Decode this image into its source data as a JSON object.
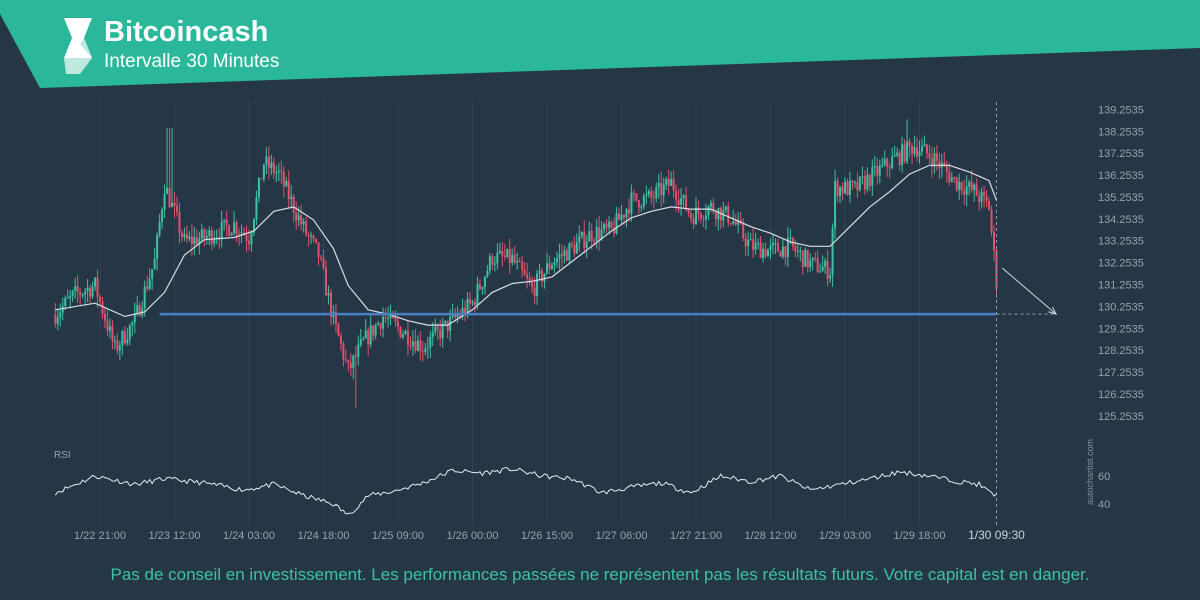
{
  "header": {
    "title": "Bitcoincash",
    "subtitle": "Intervalle 30 Minutes",
    "brand_color": "#2bb89a",
    "logo_icon": "autochartist-logo-icon"
  },
  "watermark": "autochartist.com",
  "disclaimer": "Pas de conseil en investissement. Les performances passées ne représentent pas les résultats futurs. Votre capital est en danger.",
  "colors": {
    "background": "#253746",
    "up_candle": "#3cc1a3",
    "down_candle": "#e4506a",
    "moving_average": "#d8dde2",
    "support_line": "#4a7fc4",
    "grid": "#2f4353",
    "axis_text": "#93a2ae"
  },
  "chart_data": {
    "type": "candlestick",
    "instrument": "Bitcoincash",
    "interval": "30 Minutes",
    "y_ticks": [
      139.2535,
      138.2535,
      137.2535,
      136.2535,
      135.2535,
      134.2535,
      133.2535,
      132.2535,
      131.2535,
      130.2535,
      129.2535,
      128.2535,
      127.2535,
      126.2535,
      125.2535
    ],
    "ylim": [
      124.7,
      139.5
    ],
    "x_ticks": [
      "1/22 21:00",
      "1/23 12:00",
      "1/24 03:00",
      "1/24 18:00",
      "1/25 09:00",
      "1/26 00:00",
      "1/26 15:00",
      "1/27 06:00",
      "1/27 21:00",
      "1/28 12:00",
      "1/29 03:00",
      "1/29 18:00"
    ],
    "current_time_label": "1/30 09:30",
    "price_path": [
      [
        "1/22 12:00",
        129.9
      ],
      [
        "1/22 16:00",
        130.8
      ],
      [
        "1/22 20:00",
        131.2
      ],
      [
        "1/23 00:00",
        128.3
      ],
      [
        "1/23 04:00",
        129.6
      ],
      [
        "1/23 08:00",
        132.3
      ],
      [
        "1/23 10:00",
        135.8
      ],
      [
        "1/23 14:00",
        133.2
      ],
      [
        "1/23 18:00",
        133.4
      ],
      [
        "1/24 00:00",
        134.0
      ],
      [
        "1/24 03:00",
        133.4
      ],
      [
        "1/24 06:00",
        136.8
      ],
      [
        "1/24 09:00",
        136.3
      ],
      [
        "1/24 14:00",
        133.8
      ],
      [
        "1/24 17:00",
        132.6
      ],
      [
        "1/24 20:00",
        129.6
      ],
      [
        "1/24 23:00",
        127.3
      ],
      [
        "1/25 02:00",
        128.6
      ],
      [
        "1/25 06:00",
        129.8
      ],
      [
        "1/25 10:00",
        129.1
      ],
      [
        "1/25 14:00",
        128.4
      ],
      [
        "1/25 18:00",
        129.2
      ],
      [
        "1/26 00:00",
        130.4
      ],
      [
        "1/26 04:00",
        132.5
      ],
      [
        "1/26 08:00",
        132.4
      ],
      [
        "1/26 12:00",
        131.0
      ],
      [
        "1/26 16:00",
        132.3
      ],
      [
        "1/26 20:00",
        132.9
      ],
      [
        "1/27 00:00",
        133.6
      ],
      [
        "1/27 04:00",
        133.7
      ],
      [
        "1/27 08:00",
        135.1
      ],
      [
        "1/27 12:00",
        135.2
      ],
      [
        "1/27 16:00",
        135.9
      ],
      [
        "1/27 20:00",
        134.4
      ],
      [
        "1/28 00:00",
        134.8
      ],
      [
        "1/28 04:00",
        134.3
      ],
      [
        "1/28 08:00",
        133.0
      ],
      [
        "1/28 12:00",
        132.8
      ],
      [
        "1/28 16:00",
        133.0
      ],
      [
        "1/28 20:00",
        132.2
      ],
      [
        "1/29 00:00",
        131.9
      ],
      [
        "1/29 01:00",
        135.7
      ],
      [
        "1/29 05:00",
        135.6
      ],
      [
        "1/29 09:00",
        136.3
      ],
      [
        "1/29 13:00",
        137.0
      ],
      [
        "1/29 17:00",
        137.6
      ],
      [
        "1/29 21:00",
        137.0
      ],
      [
        "1/30 01:00",
        136.0
      ],
      [
        "1/30 05:00",
        135.5
      ],
      [
        "1/30 08:00",
        134.8
      ],
      [
        "1/30 09:30",
        131.4
      ]
    ],
    "moving_average_path": [
      [
        "1/22 12:00",
        130.1
      ],
      [
        "1/22 20:00",
        130.4
      ],
      [
        "1/23 02:00",
        129.8
      ],
      [
        "1/23 06:00",
        130.0
      ],
      [
        "1/23 10:00",
        130.9
      ],
      [
        "1/23 14:00",
        132.6
      ],
      [
        "1/23 18:00",
        133.3
      ],
      [
        "1/24 00:00",
        133.4
      ],
      [
        "1/24 04:00",
        133.7
      ],
      [
        "1/24 08:00",
        134.6
      ],
      [
        "1/24 12:00",
        134.8
      ],
      [
        "1/24 16:00",
        134.2
      ],
      [
        "1/24 20:00",
        132.9
      ],
      [
        "1/24 23:00",
        131.2
      ],
      [
        "1/25 03:00",
        130.1
      ],
      [
        "1/25 07:00",
        129.9
      ],
      [
        "1/25 11:00",
        129.6
      ],
      [
        "1/25 15:00",
        129.4
      ],
      [
        "1/25 19:00",
        129.4
      ],
      [
        "1/26 00:00",
        130.1
      ],
      [
        "1/26 04:00",
        130.9
      ],
      [
        "1/26 08:00",
        131.3
      ],
      [
        "1/26 12:00",
        131.4
      ],
      [
        "1/26 16:00",
        131.6
      ],
      [
        "1/26 20:00",
        132.3
      ],
      [
        "1/27 00:00",
        133.0
      ],
      [
        "1/27 04:00",
        133.7
      ],
      [
        "1/27 08:00",
        134.3
      ],
      [
        "1/27 12:00",
        134.6
      ],
      [
        "1/27 16:00",
        134.8
      ],
      [
        "1/27 20:00",
        134.7
      ],
      [
        "1/28 00:00",
        134.7
      ],
      [
        "1/28 04:00",
        134.3
      ],
      [
        "1/28 08:00",
        133.9
      ],
      [
        "1/28 12:00",
        133.6
      ],
      [
        "1/28 16:00",
        133.2
      ],
      [
        "1/28 20:00",
        133.0
      ],
      [
        "1/29 00:00",
        133.0
      ],
      [
        "1/29 04:00",
        133.9
      ],
      [
        "1/29 08:00",
        134.8
      ],
      [
        "1/29 12:00",
        135.5
      ],
      [
        "1/29 16:00",
        136.3
      ],
      [
        "1/29 20:00",
        136.7
      ],
      [
        "1/30 00:00",
        136.7
      ],
      [
        "1/30 04:00",
        136.4
      ],
      [
        "1/30 08:00",
        136.0
      ],
      [
        "1/30 09:30",
        135.1
      ]
    ],
    "price_high": 138.8,
    "price_low": 125.6,
    "support_level": 129.9,
    "support_start": "1/23 09:00",
    "projection": {
      "from_time": "1/30 09:30",
      "from_price": 132.0,
      "to_time": "1/30 21:30",
      "to_price": 129.9
    },
    "rsi": {
      "label": "RSI",
      "y_ticks": [
        40,
        60
      ],
      "ylim": [
        25,
        75
      ],
      "path": [
        [
          "1/22 12:00",
          48
        ],
        [
          "1/22 20:00",
          60
        ],
        [
          "1/23 04:00",
          54
        ],
        [
          "1/23 10:00",
          58
        ],
        [
          "1/23 18:00",
          55
        ],
        [
          "1/24 02:00",
          50
        ],
        [
          "1/24 08:00",
          54
        ],
        [
          "1/24 14:00",
          46
        ],
        [
          "1/24 20:00",
          40
        ],
        [
          "1/24 23:00",
          32
        ],
        [
          "1/25 03:00",
          46
        ],
        [
          "1/25 08:00",
          49
        ],
        [
          "1/25 14:00",
          55
        ],
        [
          "1/25 20:00",
          64
        ],
        [
          "1/26 02:00",
          62
        ],
        [
          "1/26 08:00",
          65
        ],
        [
          "1/26 14:00",
          60
        ],
        [
          "1/26 20:00",
          58
        ],
        [
          "1/27 02:00",
          48
        ],
        [
          "1/27 08:00",
          52
        ],
        [
          "1/27 14:00",
          55
        ],
        [
          "1/27 20:00",
          48
        ],
        [
          "1/28 02:00",
          60
        ],
        [
          "1/28 08:00",
          56
        ],
        [
          "1/28 14:00",
          60
        ],
        [
          "1/28 20:00",
          50
        ],
        [
          "1/29 02:00",
          54
        ],
        [
          "1/29 08:00",
          58
        ],
        [
          "1/29 14:00",
          63
        ],
        [
          "1/29 20:00",
          60
        ],
        [
          "1/30 02:00",
          56
        ],
        [
          "1/30 06:00",
          54
        ],
        [
          "1/30 09:00",
          46
        ],
        [
          "1/30 09:30",
          48
        ]
      ]
    }
  }
}
